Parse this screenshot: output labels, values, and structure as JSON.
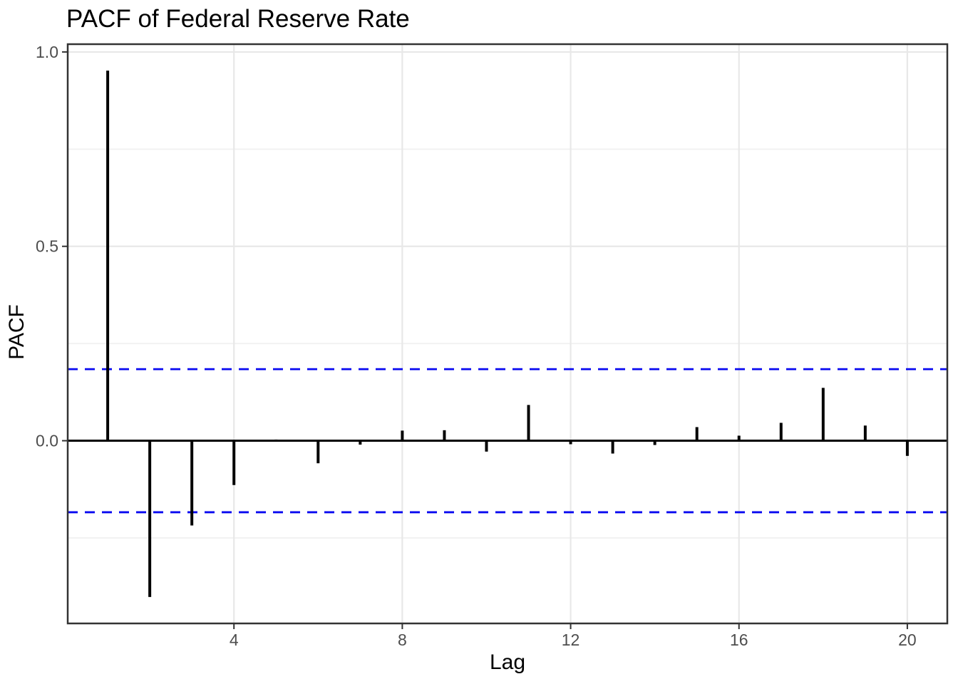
{
  "title": "PACF of Federal Reserve Rate",
  "colors": {
    "bar": "#000000",
    "zero_line": "#000000",
    "ci_line": "#0808F0",
    "grid_major": "#E8E8E8",
    "grid_minor": "#F2F2F2",
    "axis_text": "#4D4D4D",
    "tick_mark": "#333333",
    "panel_border": "#333333",
    "title_text": "#000000",
    "background": "#FFFFFF"
  },
  "chart_data": {
    "type": "bar",
    "subtype": "stem-acf-plot",
    "title": "PACF of Federal Reserve Rate",
    "xlabel": "Lag",
    "ylabel": "PACF",
    "x": [
      1,
      2,
      3,
      4,
      5,
      6,
      7,
      8,
      9,
      10,
      11,
      12,
      13,
      14,
      15,
      16,
      17,
      18,
      19,
      20
    ],
    "values": [
      0.952,
      -0.402,
      -0.218,
      -0.114,
      0.003,
      -0.058,
      -0.01,
      0.026,
      0.027,
      -0.028,
      0.092,
      -0.009,
      -0.033,
      -0.011,
      0.035,
      0.013,
      0.046,
      0.136,
      0.039,
      -0.039
    ],
    "confidence_upper": 0.184,
    "confidence_lower": -0.184,
    "confidence_line_style": "dashed-blue",
    "xlim": [
      0.05,
      20.95
    ],
    "ylim": [
      -0.47,
      1.02
    ],
    "x_major_breaks": [
      4,
      8,
      12,
      16,
      20
    ],
    "x_tick_labels": [
      "4",
      "8",
      "12",
      "16",
      "20"
    ],
    "y_major_breaks": [
      0.0,
      0.5,
      1.0
    ],
    "y_tick_labels": [
      "0.0",
      "0.5",
      "1.0"
    ],
    "y_minor_breaks": [
      -0.25,
      0.25,
      0.75
    ],
    "grid": "horizontal major+minor, vertical major only",
    "legend": "none"
  }
}
